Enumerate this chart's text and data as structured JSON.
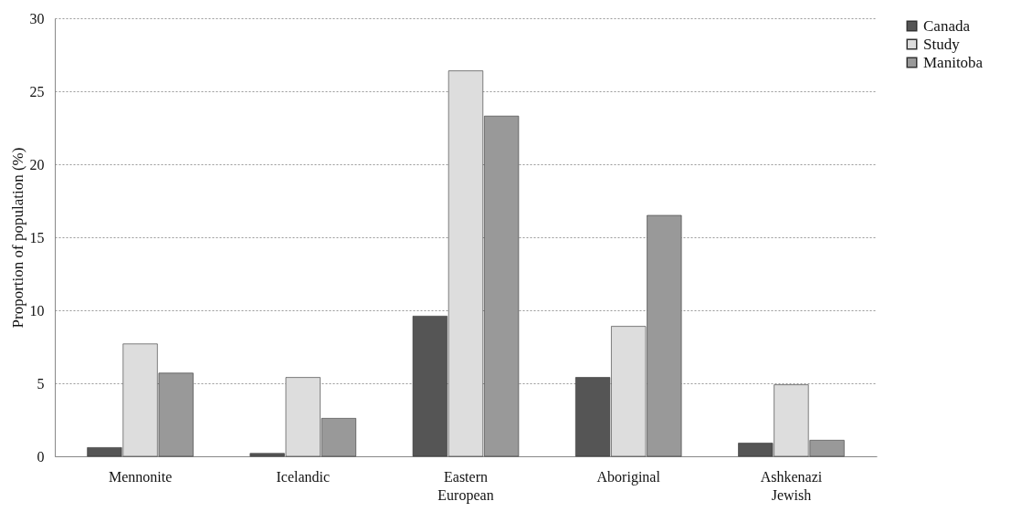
{
  "chart_data": {
    "type": "bar",
    "ylabel": "Proportion of population (%)",
    "categories": [
      "Mennonite",
      "Icelandic",
      "Eastern European",
      "Aboriginal",
      "Ashkenazi Jewish"
    ],
    "series": [
      {
        "name": "Canada",
        "color": "#555555",
        "values": [
          0.6,
          0.2,
          9.6,
          5.4,
          0.9
        ]
      },
      {
        "name": "Study",
        "color": "#dddddd",
        "values": [
          7.7,
          5.4,
          26.4,
          8.9,
          4.9
        ]
      },
      {
        "name": "Manitoba",
        "color": "#999999",
        "values": [
          5.7,
          2.6,
          23.3,
          16.5,
          1.1
        ]
      }
    ],
    "ylim": [
      0,
      30
    ],
    "yticks": [
      0,
      5,
      10,
      15,
      20,
      25,
      30
    ],
    "grid": "y",
    "legend": "right"
  }
}
